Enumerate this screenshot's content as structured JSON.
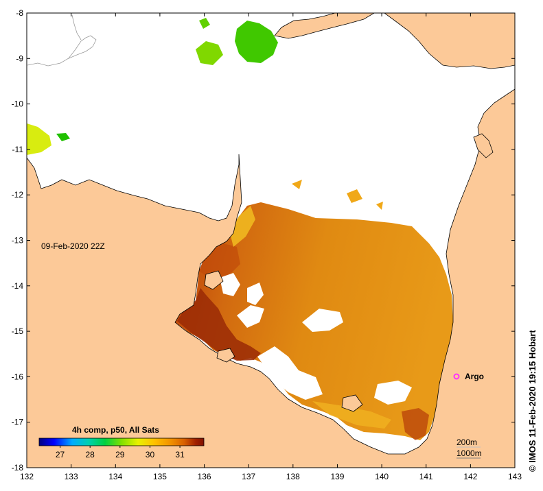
{
  "map": {
    "axes": {
      "x_ticks": [
        "132",
        "133",
        "134",
        "135",
        "136",
        "137",
        "138",
        "139",
        "140",
        "141",
        "142",
        "143"
      ],
      "y_ticks": [
        "-8",
        "-9",
        "-10",
        "-11",
        "-12",
        "-13",
        "-14",
        "-15",
        "-16",
        "-17",
        "-18"
      ],
      "x_range": [
        132,
        143
      ],
      "y_range": [
        -18,
        -8
      ]
    },
    "date_label": "09-Feb-2020 22Z",
    "argo_label": "Argo",
    "argo_marker_color": "#ff33ff",
    "depth_labels": [
      "200m",
      "1000m"
    ],
    "credit": "© IMOS 11-Feb-2020 19:15 Hobart",
    "colorbar": {
      "title": "4h comp, p50, All Sats",
      "tick_labels": [
        "27",
        "28",
        "29",
        "30",
        "31"
      ],
      "ticks": [
        27,
        28,
        29,
        30,
        31
      ],
      "range": [
        26.3,
        31.8
      ],
      "colors": [
        "#000080",
        "#0000ff",
        "#00aaff",
        "#00d0b0",
        "#00d040",
        "#80e000",
        "#e8f000",
        "#ffc000",
        "#f09000",
        "#d86000",
        "#a02000",
        "#801000"
      ]
    },
    "land_color": "#fcc998",
    "cloud_color": "#ffffff"
  }
}
